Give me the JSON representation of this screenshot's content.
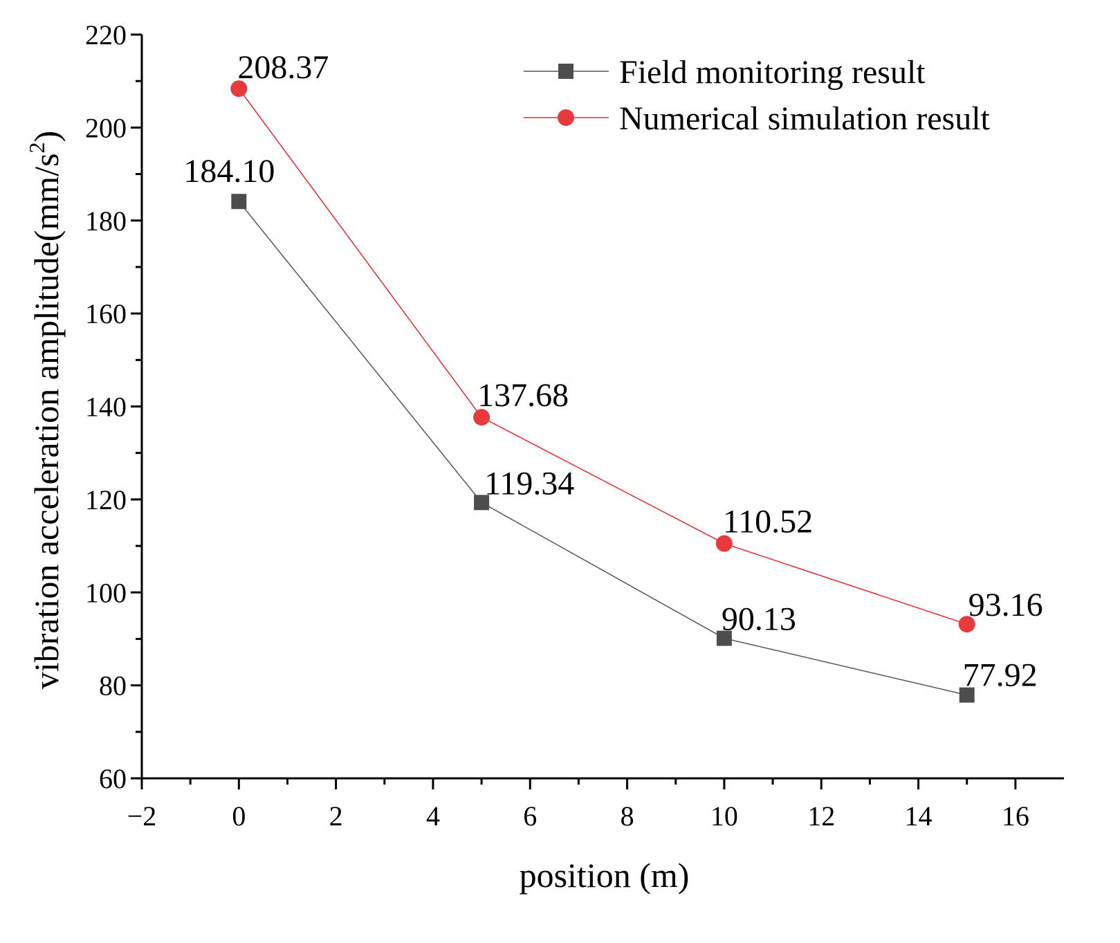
{
  "chart_data": {
    "type": "line",
    "title": "",
    "xlabel": "position (m)",
    "ylabel_main": "vibration acceleration amplitude(mm/s",
    "ylabel_sup": "2",
    "ylabel_close": ")",
    "xlim": [
      -2,
      17
    ],
    "ylim": [
      60,
      220
    ],
    "x_ticks": [
      -2,
      0,
      2,
      4,
      6,
      8,
      10,
      12,
      14,
      16
    ],
    "x_tick_labels": [
      "−2",
      "0",
      "2",
      "4",
      "6",
      "8",
      "10",
      "12",
      "14",
      "16"
    ],
    "y_ticks": [
      60,
      80,
      100,
      120,
      140,
      160,
      180,
      200,
      220
    ],
    "y_tick_labels": [
      "60",
      "80",
      "100",
      "120",
      "140",
      "160",
      "180",
      "200",
      "220"
    ],
    "grid": false,
    "legend_position": "top-right",
    "series": [
      {
        "name": "Field monitoring result",
        "marker": "square",
        "line_color": "#555555",
        "marker_color": "#4d4d4d",
        "x": [
          0,
          5,
          10,
          15
        ],
        "y": [
          184.1,
          119.34,
          90.13,
          77.92
        ],
        "labels": [
          "184.10",
          "119.34",
          "90.13",
          "77.92"
        ]
      },
      {
        "name": "Numerical simulation result",
        "marker": "circle",
        "line_color": "#e8262b",
        "marker_color": "#e8393d",
        "x": [
          0,
          5,
          10,
          15
        ],
        "y": [
          208.37,
          137.68,
          110.52,
          93.16
        ],
        "labels": [
          "208.37",
          "137.68",
          "110.52",
          "93.16"
        ]
      }
    ]
  }
}
